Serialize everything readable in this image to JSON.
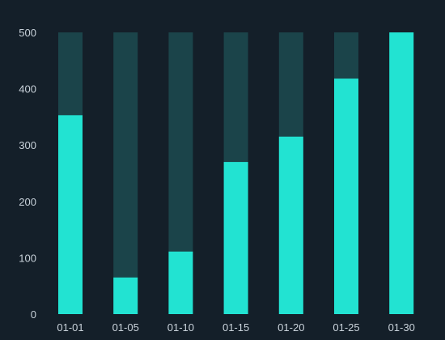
{
  "chart_data": {
    "type": "bar",
    "categories": [
      "01-01",
      "01-05",
      "01-10",
      "01-15",
      "01-20",
      "01-25",
      "01-30"
    ],
    "series": [
      {
        "values": [
          353,
          65,
          111,
          270,
          315,
          418,
          500
        ]
      }
    ],
    "background_max": 500,
    "ylim": [
      0,
      500
    ],
    "yticks": [
      "0",
      "100",
      "200",
      "300",
      "400",
      "500"
    ],
    "grid": false,
    "title": "",
    "xlabel": "",
    "ylabel": "",
    "colors": {
      "background": "#141f29",
      "bar": "#22e3d2",
      "bar_track": "#1b444a",
      "tick_text": "#c9d2da"
    }
  }
}
